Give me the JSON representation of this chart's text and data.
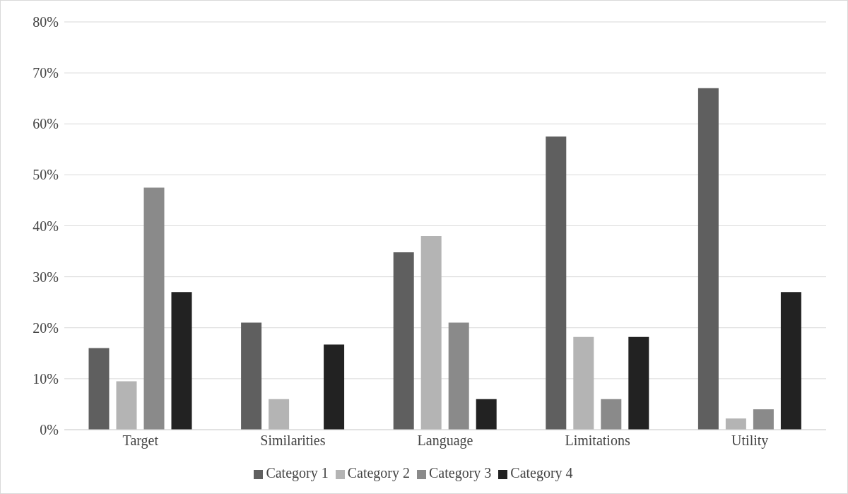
{
  "chart_data": {
    "type": "bar",
    "categories": [
      "Target",
      "Similarities",
      "Language",
      "Limitations",
      "Utility"
    ],
    "series": [
      {
        "name": "Category 1",
        "color": "#5f5f5f",
        "values": [
          16,
          21,
          34.8,
          57.5,
          67
        ]
      },
      {
        "name": "Category 2",
        "color": "#b4b4b4",
        "values": [
          9.5,
          6,
          38,
          18.2,
          2.2
        ]
      },
      {
        "name": "Category 3",
        "color": "#8a8a8a",
        "values": [
          47.5,
          0,
          21,
          6,
          4
        ]
      },
      {
        "name": "Category 4",
        "color": "#222222",
        "values": [
          27,
          16.7,
          6,
          18.2,
          27
        ]
      }
    ],
    "ylim": [
      0,
      80
    ],
    "yticks": [
      {
        "value": 0,
        "label": "0%"
      },
      {
        "value": 10,
        "label": "10%"
      },
      {
        "value": 20,
        "label": "20%"
      },
      {
        "value": 30,
        "label": "30%"
      },
      {
        "value": 40,
        "label": "40%"
      },
      {
        "value": 50,
        "label": "50%"
      },
      {
        "value": 60,
        "label": "60%"
      },
      {
        "value": 70,
        "label": "70%"
      },
      {
        "value": 80,
        "label": "80%"
      }
    ],
    "grid": "y",
    "legend": "bottom"
  }
}
